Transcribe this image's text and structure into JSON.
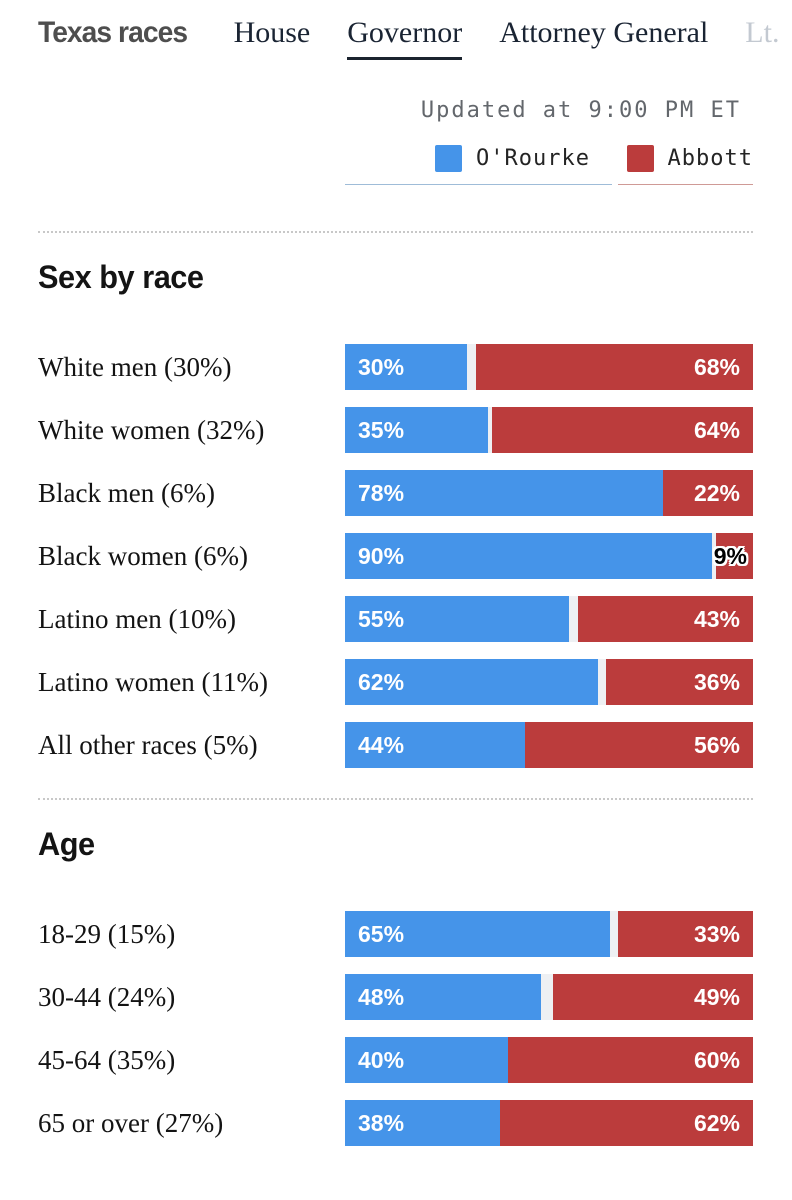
{
  "nav": {
    "title": "Texas races",
    "items": [
      {
        "label": "House",
        "active": false
      },
      {
        "label": "Governor",
        "active": true
      },
      {
        "label": "Attorney General",
        "active": false
      },
      {
        "label": "Lt.",
        "active": false,
        "muted": true
      }
    ]
  },
  "updated": "Updated at 9:00 PM ET",
  "colors": {
    "orourke_blue": "#4594e9",
    "abbott_red": "#bb3c3c",
    "bar_gap_gray": "#eef0f3",
    "legend_rule_blue": "#9fbcd8",
    "legend_rule_red": "#cf9a96"
  },
  "chart_data": [
    {
      "type": "bar",
      "orientation": "horizontal",
      "title": "Sex by race",
      "categories": [
        "White men (30%)",
        "White women (32%)",
        "Black men (6%)",
        "Black women (6%)",
        "Latino men (10%)",
        "Latino women (11%)",
        "All other races (5%)"
      ],
      "series": [
        {
          "name": "O'Rourke",
          "color": "#4594e9",
          "values": [
            30,
            35,
            78,
            90,
            55,
            62,
            44
          ]
        },
        {
          "name": "Abbott",
          "color": "#bb3c3c",
          "values": [
            68,
            64,
            22,
            9,
            43,
            36,
            56
          ]
        }
      ],
      "value_suffix": "%",
      "xlim": [
        0,
        100
      ],
      "legend_position": "top",
      "grid": false
    },
    {
      "type": "bar",
      "orientation": "horizontal",
      "title": "Age",
      "categories": [
        "18-29 (15%)",
        "30-44 (24%)",
        "45-64 (35%)",
        "65 or over (27%)"
      ],
      "series": [
        {
          "name": "O'Rourke",
          "color": "#4594e9",
          "values": [
            65,
            48,
            40,
            38
          ]
        },
        {
          "name": "Abbott",
          "color": "#bb3c3c",
          "values": [
            33,
            49,
            60,
            62
          ]
        }
      ],
      "value_suffix": "%",
      "xlim": [
        0,
        100
      ],
      "legend_position": "top",
      "grid": false
    }
  ]
}
